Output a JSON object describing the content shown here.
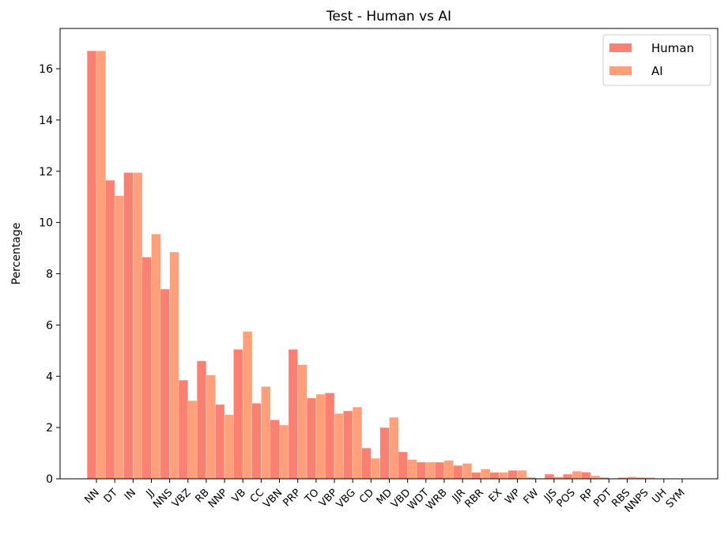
{
  "chart_data": {
    "type": "bar",
    "title": "Test - Human vs AI",
    "xlabel": "",
    "ylabel": "Percentage",
    "ylim": [
      0,
      17.5
    ],
    "yticks": [
      0,
      2,
      4,
      6,
      8,
      10,
      12,
      14,
      16
    ],
    "grid": false,
    "legend_position": "top-right",
    "categories": [
      "NN",
      "DT",
      "IN",
      "JJ",
      "NNS",
      "VBZ",
      "RB",
      "NNP",
      "VB",
      "CC",
      "VBN",
      "PRP",
      "TO",
      "VBP",
      "VBG",
      "CD",
      "MD",
      "VBD",
      "WDT",
      "WRB",
      "JJR",
      "RBR",
      "EX",
      "WP",
      "FW",
      "JJS",
      "POS",
      "RP",
      "PDT",
      "RBS",
      "NNPS",
      "UH",
      "SYM"
    ],
    "series": [
      {
        "name": "Human",
        "color": "#fa8072",
        "values": [
          16.7,
          11.65,
          11.95,
          8.65,
          7.4,
          3.85,
          4.6,
          2.9,
          5.05,
          2.95,
          2.3,
          5.05,
          3.15,
          3.35,
          2.65,
          1.2,
          2.0,
          1.05,
          0.65,
          0.65,
          0.52,
          0.25,
          0.25,
          0.33,
          0.05,
          0.18,
          0.18,
          0.26,
          0.05,
          0.05,
          0.05,
          0.01,
          0.0
        ]
      },
      {
        "name": "AI",
        "color": "#ffa07a",
        "values": [
          16.7,
          11.05,
          11.95,
          9.55,
          8.85,
          3.05,
          4.05,
          2.5,
          5.75,
          3.6,
          2.1,
          4.45,
          3.3,
          2.55,
          2.8,
          0.8,
          2.4,
          0.75,
          0.65,
          0.72,
          0.6,
          0.38,
          0.25,
          0.33,
          0.02,
          0.08,
          0.3,
          0.12,
          0.02,
          0.08,
          0.05,
          0.01,
          0.0
        ]
      }
    ]
  }
}
